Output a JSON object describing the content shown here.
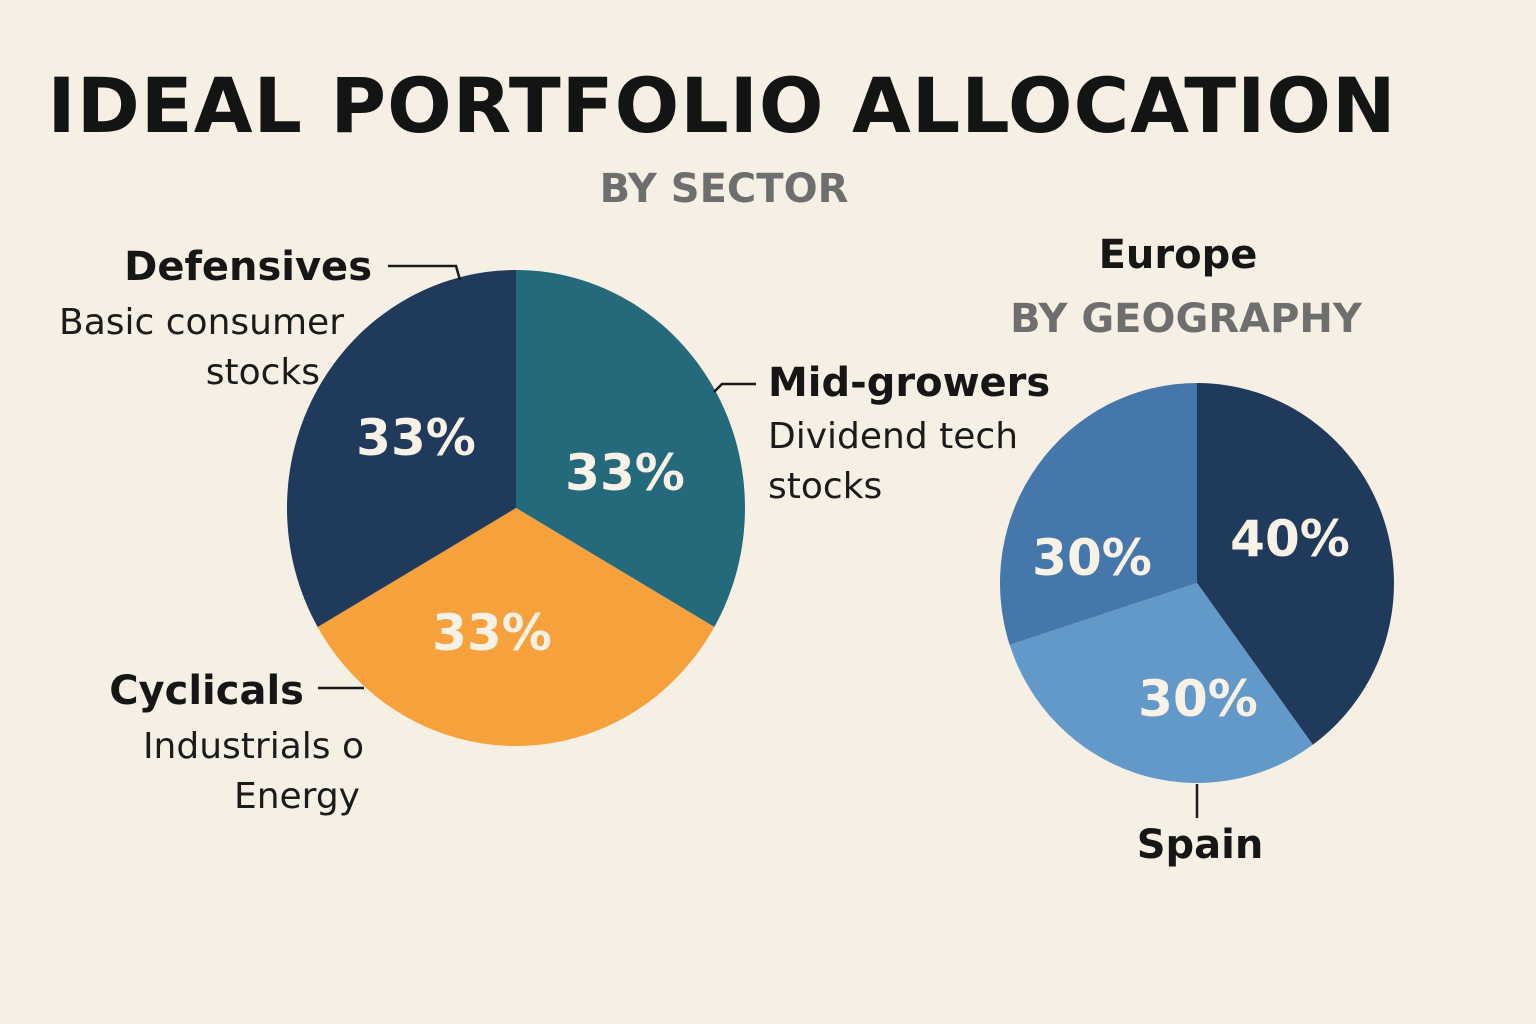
{
  "title": "IDEAL PORTFOLIO ALLOCATION",
  "chart_data": [
    {
      "type": "pie",
      "title": "BY SECTOR",
      "slices": [
        {
          "label": "Mid-growers",
          "description": [
            "Dividend tech",
            "stocks"
          ],
          "value": 33,
          "value_label": "33%",
          "color": "#256a7b"
        },
        {
          "label": "Cyclicals",
          "description": [
            "Industrials o",
            "Energy"
          ],
          "value": 33,
          "value_label": "33%",
          "color": "#f6a13c"
        },
        {
          "label": "Defensives",
          "description": [
            "Basic consumer",
            "stocks"
          ],
          "value": 33,
          "value_label": "33%",
          "color": "#1f3a5a"
        }
      ]
    },
    {
      "type": "pie",
      "title": "BY GEOGRAPHY",
      "heading": "Europe",
      "slices": [
        {
          "label": "",
          "value": 40,
          "value_label": "40%",
          "color": "#1f3a5a"
        },
        {
          "label": "Spain",
          "value": 30,
          "value_label": "30%",
          "color": "#6399c9"
        },
        {
          "label": "",
          "value": 30,
          "value_label": "30%",
          "color": "#4677ab"
        }
      ]
    }
  ]
}
